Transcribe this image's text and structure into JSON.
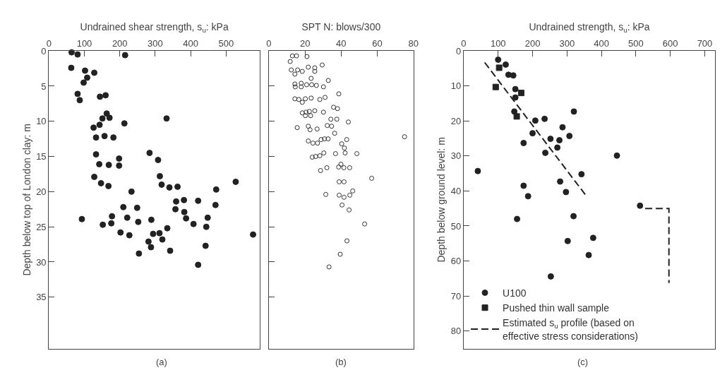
{
  "chart_data": [
    {
      "type": "scatter",
      "xlabel": "Undrained shear strength, s$_{u}$: kPa",
      "ylabel": "Depth below top of London clay: m",
      "xlim": [
        0,
        595
      ],
      "xticks": [
        0,
        100,
        200,
        300,
        400,
        500
      ],
      "ylim": [
        42.3,
        0
      ],
      "yticks": [
        0,
        5,
        10,
        15,
        20,
        25,
        30,
        35
      ],
      "annotations": [
        "(a)"
      ],
      "series": [
        {
          "color": "#222222",
          "marker": "circle",
          "x": [
            64,
            81,
            215,
            63,
            102,
            128,
            108,
            98,
            81,
            87,
            144,
            160,
            163,
            151,
            171,
            332,
            143,
            126,
            213,
            133,
            157,
            182,
            133,
            284,
            198,
            308,
            142,
            169,
            198,
            128,
            313,
            147,
            168,
            233,
            318,
            340,
            363,
            472,
            527,
            470,
            210,
            249,
            359,
            381,
            421,
            357,
            382,
            387,
            448,
            93,
            178,
            221,
            252,
            289,
            176,
            152,
            408,
            444,
            334,
            202,
            227,
            294,
            312,
            576,
            281,
            320,
            288,
            442,
            342,
            254,
            421
          ],
          "values": [
            0.2,
            0.5,
            0.6,
            2.4,
            2.8,
            3.1,
            3.8,
            4.5,
            6.1,
            7.0,
            6.5,
            6.3,
            8.9,
            9.6,
            9.5,
            9.6,
            10.5,
            10.9,
            10.3,
            12.3,
            12.1,
            12.3,
            14.7,
            14.5,
            15.3,
            15.5,
            16.1,
            16.2,
            16.3,
            17.9,
            17.8,
            18.8,
            19.2,
            20.0,
            19.0,
            19.4,
            19.3,
            19.7,
            18.6,
            21.9,
            22.2,
            22.3,
            21.4,
            21.2,
            21.3,
            22.5,
            22.9,
            23.8,
            23.7,
            23.9,
            23.5,
            23.7,
            24.3,
            24.0,
            24.5,
            24.7,
            24.6,
            25.0,
            25.2,
            25.8,
            26.2,
            26.0,
            25.9,
            26.1,
            27.1,
            26.8,
            27.9,
            27.7,
            28.4,
            28.8,
            30.4
          ]
        }
      ]
    },
    {
      "type": "scatter",
      "xlabel": "SPT N: blows/300",
      "xlim": [
        0,
        80
      ],
      "xticks": [
        0,
        20,
        40,
        60,
        80
      ],
      "ylim": [
        42.3,
        0
      ],
      "yticks": [
        0,
        5,
        10,
        15,
        20,
        25,
        30,
        35
      ],
      "tick_labels": "x",
      "annotations": [
        "(b)"
      ],
      "series": [
        {
          "color": "#333333",
          "marker": "circle-open",
          "x": [
            13.0,
            15.3,
            21.1,
            11.8,
            12.4,
            14.4,
            15.9,
            18.5,
            21.8,
            25.4,
            25.4,
            29.5,
            23.4,
            32.9,
            14.4,
            17.9,
            14.6,
            17.9,
            20.9,
            23.7,
            26.3,
            30.2,
            38.7,
            14.4,
            16.6,
            18.5,
            20.2,
            23.4,
            28.2,
            31.1,
            35.8,
            38.0,
            18.5,
            20.6,
            22.4,
            25.4,
            20.2,
            23.1,
            30.2,
            34.3,
            37.6,
            44.0,
            15.7,
            21.8,
            22.8,
            26.7,
            32.3,
            34.7,
            36.4,
            75.1,
            21.8,
            24.4,
            26.9,
            28.9,
            30.8,
            32.8,
            40.3,
            43.1,
            41.8,
            42.2,
            36.9,
            48.7,
            24.0,
            25.9,
            28.2,
            30.4,
            28.6,
            32.1,
            39.9,
            38.6,
            41.5,
            44.7,
            56.9,
            38.9,
            41.6,
            31.5,
            38.9,
            41.6,
            44.8,
            46.4,
            40.5,
            44.4,
            53.0,
            43.2,
            39.5,
            33.3
          ],
          "values": [
            0.7,
            0.7,
            0.8,
            1.5,
            2.7,
            3.3,
            2.7,
            2.9,
            2.3,
            2.4,
            2.9,
            2.0,
            3.9,
            4.2,
            4.7,
            4.6,
            5.1,
            5.1,
            4.8,
            4.8,
            4.9,
            5.1,
            6.1,
            6.8,
            6.9,
            7.3,
            6.8,
            6.7,
            6.9,
            6.6,
            8.0,
            8.2,
            8.8,
            8.7,
            8.6,
            8.5,
            9.2,
            9.2,
            8.7,
            9.7,
            9.7,
            10.1,
            10.9,
            10.7,
            11.2,
            11.1,
            10.6,
            10.7,
            11.7,
            12.2,
            12.8,
            13.1,
            13.1,
            12.6,
            12.5,
            12.5,
            13.2,
            12.6,
            13.8,
            14.5,
            14.6,
            14.6,
            15.1,
            15.0,
            14.9,
            14.5,
            17.0,
            16.6,
            16.1,
            16.5,
            16.6,
            16.6,
            18.1,
            18.6,
            18.6,
            20.4,
            20.5,
            20.8,
            20.5,
            19.9,
            21.9,
            22.6,
            24.6,
            27.0,
            28.9,
            30.7
          ]
        }
      ]
    },
    {
      "type": "scatter",
      "xlabel": "Undrained strength, s$_{u}$: kPa",
      "ylabel": "Depth below ground level: m",
      "xlim": [
        0,
        730
      ],
      "xticks": [
        0,
        100,
        200,
        300,
        400,
        500,
        600,
        700
      ],
      "ylim": [
        85,
        0
      ],
      "yticks": [
        0,
        10,
        20,
        30,
        40,
        50,
        60,
        70,
        80
      ],
      "legend": "bottom left",
      "annotations": [
        "(c)"
      ],
      "series": [
        {
          "name": "U100",
          "color": "#222222",
          "marker": "circle",
          "x": [
            100,
            122,
            130,
            144,
            150,
            150,
            147,
            208,
            235,
            320,
            287,
            307,
            200,
            252,
            278,
            272,
            174,
            237,
            445,
            41,
            342,
            280,
            174,
            297,
            187,
            512,
            155,
            319,
            302,
            376,
            363,
            253
          ],
          "values": [
            2.5,
            3.9,
            6.8,
            7.0,
            10.9,
            13.3,
            17.3,
            19.9,
            19.4,
            17.3,
            21.8,
            24.3,
            23.5,
            25.1,
            25.5,
            27.6,
            26.3,
            29.1,
            29.9,
            34.3,
            35.2,
            37.3,
            38.5,
            40.3,
            41.5,
            44.2,
            48.0,
            47.2,
            54.3,
            53.4,
            58.3,
            64.4
          ]
        },
        {
          "name": "Pushed thin wall sample",
          "color": "#222222",
          "marker": "square",
          "x": [
            103,
            93,
            167,
            154
          ],
          "values": [
            4.8,
            10.3,
            12.0,
            18.7
          ]
        },
        {
          "name": "Estimated s$_{u}$ profile (based on\neffective stress considerations)",
          "type": "line",
          "line_style": "dashed",
          "marker": "none",
          "color": "#222222",
          "x": [
            61,
            359,
            null,
            527,
            596,
            596
          ],
          "values": [
            3.3,
            41.8,
            null,
            45.0,
            45.0,
            66.3
          ]
        }
      ]
    }
  ]
}
